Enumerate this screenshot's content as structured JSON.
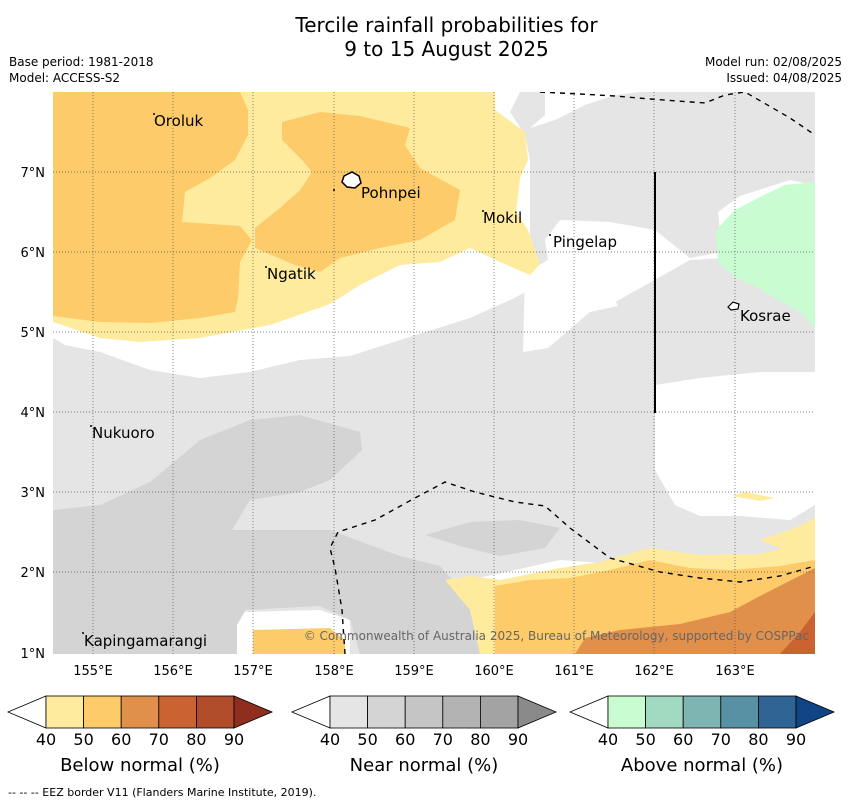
{
  "title": {
    "line1": "Tercile rainfall probabilities for",
    "line2": "9 to 15 August 2025"
  },
  "meta": {
    "base_period": "Base period: 1981-2018",
    "model": "Model: ACCESS-S2",
    "model_run": "Model run: 02/08/2025",
    "issued": "Issued: 04/08/2025"
  },
  "map": {
    "lon_ticks": [
      "155°E",
      "156°E",
      "157°E",
      "158°E",
      "159°E",
      "160°E",
      "161°E",
      "162°E",
      "163°E"
    ],
    "lat_ticks": [
      "7°N",
      "6°N",
      "5°N",
      "4°N",
      "3°N",
      "2°N",
      "1°N"
    ],
    "places": {
      "oroluk": "Oroluk",
      "pohnpei": "Pohnpei",
      "mokil": "Mokil",
      "pingelap": "Pingelap",
      "ngatik": "Ngatik",
      "kosrae": "Kosrae",
      "nukuoro": "Nukuoro",
      "kapingamarangi": "Kapingamarangi"
    },
    "copyright": "© Commonwealth of Australia 2025, Bureau of Meteorology, supported by COSPPac"
  },
  "colorbars": {
    "ticks": [
      "40",
      "50",
      "60",
      "70",
      "80",
      "90"
    ],
    "below": {
      "label": "Below normal (%)",
      "colors": [
        "#ffffff",
        "#ffeb9e",
        "#fdcb69",
        "#e0904a",
        "#cb6232",
        "#b14d2b",
        "#8f2d1f"
      ]
    },
    "near": {
      "label": "Near normal (%)",
      "colors": [
        "#ffffff",
        "#e5e5e5",
        "#d4d4d4",
        "#c5c5c5",
        "#b3b3b3",
        "#a3a3a3",
        "#8a8a8a"
      ]
    },
    "above": {
      "label": "Above normal (%)",
      "colors": [
        "#ffffff",
        "#c9fcd0",
        "#a1d9c1",
        "#7eb5b2",
        "#5891a3",
        "#306495",
        "#0f4585"
      ]
    }
  },
  "footer": "-- -- -- EEZ border V11 (Flanders Marine Institute, 2019)."
}
